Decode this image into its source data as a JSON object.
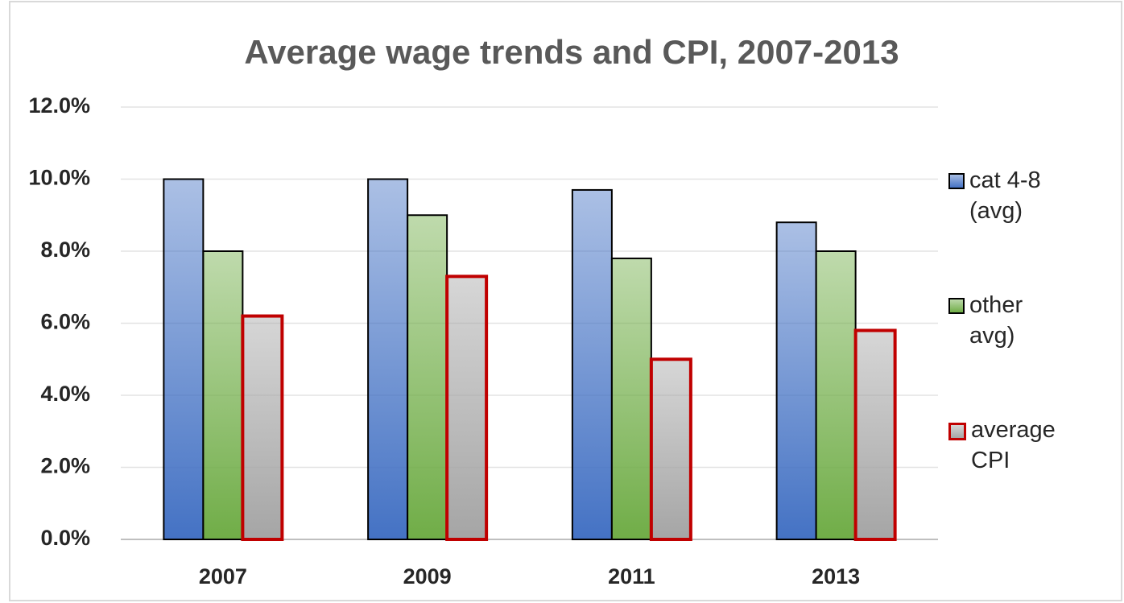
{
  "chart_data": {
    "type": "bar",
    "title": "Average wage trends and CPI, 2007-2013",
    "categories": [
      "2007",
      "2009",
      "2011",
      "2013"
    ],
    "series": [
      {
        "name": "cat 4-8 (avg)",
        "color": "#4472c4",
        "edge_color": "#000000",
        "values": [
          10.0,
          10.0,
          9.7,
          8.8
        ]
      },
      {
        "name": "other avg)",
        "color": "#70ad47",
        "edge_color": "#000000",
        "values": [
          8.0,
          9.0,
          7.8,
          8.0
        ]
      },
      {
        "name": "average CPI",
        "color": "#a5a5a5",
        "edge_color": "#c00000",
        "values": [
          6.2,
          7.3,
          5.0,
          5.8
        ]
      }
    ],
    "ylim": [
      0,
      12
    ],
    "yticks": [
      {
        "value": 0,
        "label": "0.0%"
      },
      {
        "value": 2,
        "label": "2.0%"
      },
      {
        "value": 4,
        "label": "4.0%"
      },
      {
        "value": 6,
        "label": "6.0%"
      },
      {
        "value": 8,
        "label": "8.0%"
      },
      {
        "value": 10,
        "label": "10.0%"
      },
      {
        "value": 12,
        "label": "12.0%"
      }
    ],
    "grid": true,
    "legend": "right"
  }
}
